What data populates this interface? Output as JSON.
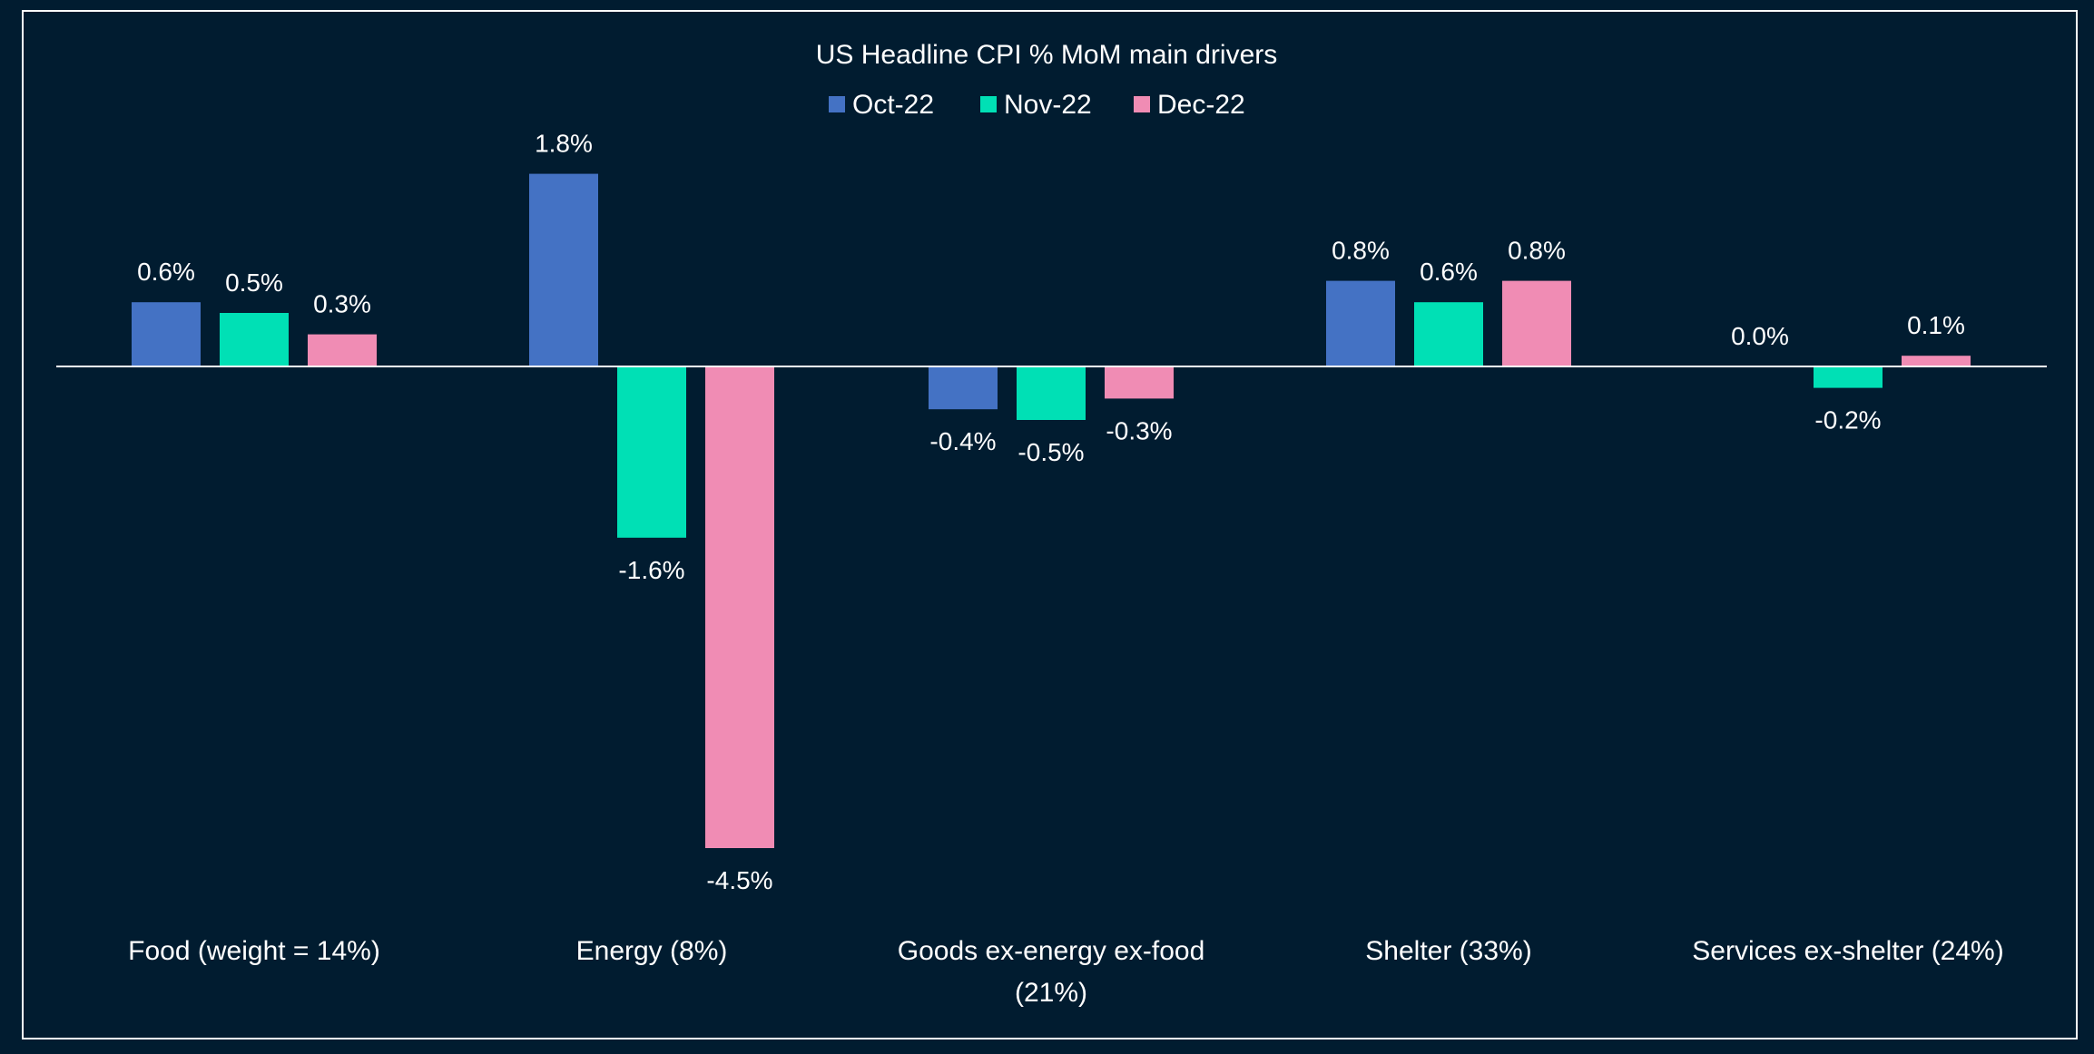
{
  "chart_data": {
    "type": "bar",
    "title": "US Headline CPI % MoM main drivers",
    "categories": [
      [
        "Food (weight = 14%)"
      ],
      [
        "Energy (8%)"
      ],
      [
        "Goods ex-energy ex-food",
        "(21%)"
      ],
      [
        "Shelter (33%)"
      ],
      [
        "Services ex-shelter (24%)"
      ]
    ],
    "series": [
      {
        "name": "Oct-22",
        "color": "#4472c4",
        "values": [
          0.6,
          1.8,
          -0.4,
          0.8,
          0.0
        ],
        "labels": [
          "0.6%",
          "1.8%",
          "-0.4%",
          "0.8%",
          "0.0%"
        ]
      },
      {
        "name": "Nov-22",
        "color": "#00e0b5",
        "values": [
          0.5,
          -1.6,
          -0.5,
          0.6,
          -0.2
        ],
        "labels": [
          "0.5%",
          "-1.6%",
          "-0.5%",
          "0.6%",
          "-0.2%"
        ]
      },
      {
        "name": "Dec-22",
        "color": "#f08cb4",
        "values": [
          0.3,
          -4.5,
          -0.3,
          0.8,
          0.1
        ],
        "labels": [
          "0.3%",
          "-4.5%",
          "-0.3%",
          "0.8%",
          "0.1%"
        ]
      }
    ],
    "xlabel": "",
    "ylabel": "",
    "ylim": [
      -5.2,
      2.6
    ],
    "grid": false,
    "legend": "top-center",
    "colors": {
      "background": "#011c30",
      "text": "#ffffff",
      "axis": "#ffffff",
      "border": "#ffffff"
    }
  }
}
